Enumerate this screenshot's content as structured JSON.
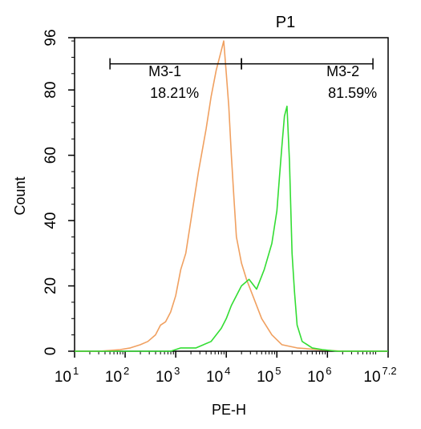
{
  "chart_data": {
    "type": "line",
    "title": "P1",
    "title_color": "#33dd33",
    "xlabel": "PE-H",
    "ylabel": "Count",
    "x_scale": "log",
    "xlim": [
      1,
      7.2
    ],
    "ylim": [
      0,
      96
    ],
    "x_ticks": [
      {
        "base": "10",
        "exp": "1",
        "value": 1
      },
      {
        "base": "10",
        "exp": "2",
        "value": 2
      },
      {
        "base": "10",
        "exp": "3",
        "value": 3
      },
      {
        "base": "10",
        "exp": "4",
        "value": 4
      },
      {
        "base": "10",
        "exp": "5",
        "value": 5
      },
      {
        "base": "10",
        "exp": "6",
        "value": 6
      },
      {
        "base": "10",
        "exp": "7.2",
        "value": 7.2
      }
    ],
    "y_ticks": [
      {
        "label": "0",
        "value": 0
      },
      {
        "label": "20",
        "value": 20
      },
      {
        "label": "40",
        "value": 40
      },
      {
        "label": "60",
        "value": 60
      },
      {
        "label": "80",
        "value": 80
      },
      {
        "label": "96",
        "value": 96
      }
    ],
    "gates": [
      {
        "name": "M3-1",
        "percent": "18.21%",
        "x_start": 1.7,
        "x_end": 4.3,
        "y": 88
      },
      {
        "name": "M3-2",
        "percent": "81.59%",
        "x_start": 4.3,
        "x_end": 6.9,
        "y": 88
      }
    ],
    "series": [
      {
        "color": "#f0a060",
        "x": [
          1.0,
          1.5,
          1.9,
          2.1,
          2.3,
          2.45,
          2.6,
          2.7,
          2.8,
          2.9,
          3.0,
          3.1,
          3.2,
          3.3,
          3.45,
          3.6,
          3.7,
          3.8,
          3.9,
          3.95,
          4.0,
          4.05,
          4.1,
          4.15,
          4.2,
          4.3,
          4.4,
          4.5,
          4.7,
          4.9,
          5.1,
          5.4,
          5.8,
          6.3,
          7.2
        ],
        "y": [
          0,
          0,
          0.5,
          1,
          2,
          3,
          5,
          8,
          9,
          12,
          17,
          25,
          30,
          40,
          55,
          68,
          78,
          86,
          92,
          95,
          85,
          75,
          60,
          47,
          35,
          27,
          22,
          18,
          10,
          5,
          2,
          1,
          0.5,
          0,
          0
        ]
      },
      {
        "color": "#33dd33",
        "x": [
          1.0,
          2.9,
          3.1,
          3.4,
          3.7,
          3.9,
          4.0,
          4.1,
          4.2,
          4.3,
          4.45,
          4.6,
          4.75,
          4.9,
          5.0,
          5.05,
          5.1,
          5.15,
          5.2,
          5.25,
          5.3,
          5.35,
          5.4,
          5.5,
          5.7,
          5.9,
          6.2,
          7.2
        ],
        "y": [
          0,
          0,
          1,
          1,
          3,
          7,
          10,
          14,
          17,
          20,
          22,
          19,
          25,
          33,
          43,
          53,
          63,
          72,
          75,
          58,
          30,
          18,
          8,
          3,
          1,
          0.5,
          0,
          0
        ]
      }
    ]
  }
}
